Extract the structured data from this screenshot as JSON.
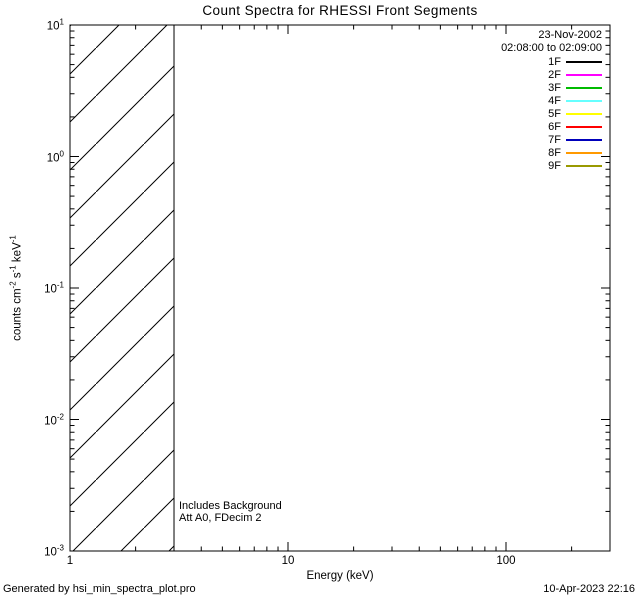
{
  "title": "Count Spectra for RHESSI Front Segments",
  "legend": {
    "date": "23-Nov-2002",
    "time_range": "02:08:00 to 02:09:00",
    "entries": [
      {
        "label": "1F",
        "color": "#000000"
      },
      {
        "label": "2F",
        "color": "#ff00ff"
      },
      {
        "label": "3F",
        "color": "#00bb00"
      },
      {
        "label": "4F",
        "color": "#66ffff"
      },
      {
        "label": "5F",
        "color": "#ffff00"
      },
      {
        "label": "6F",
        "color": "#ff0000"
      },
      {
        "label": "7F",
        "color": "#0000bb"
      },
      {
        "label": "8F",
        "color": "#ff9900"
      },
      {
        "label": "9F",
        "color": "#999900"
      }
    ]
  },
  "annotations": {
    "line1": "Includes Background",
    "line2": "Att A0, FDecim 2"
  },
  "footer": {
    "generated_by": "Generated by hsi_min_spectra_plot.pro",
    "timestamp": "10-Apr-2023 22:16"
  },
  "chart_data": {
    "type": "line",
    "title": "Count Spectra for RHESSI Front Segments",
    "xlabel": "Energy (keV)",
    "ylabel": "counts cm-2 s-1 keV-1",
    "xscale": "log",
    "yscale": "log",
    "xlim": [
      1,
      300
    ],
    "ylim": [
      0.001,
      10
    ],
    "x_ticks": [
      1,
      10,
      100
    ],
    "x_tick_labels": [
      "1",
      "10",
      "100"
    ],
    "y_ticks": [
      10,
      1,
      0.1,
      0.01,
      0.001
    ],
    "y_tick_labels": [
      {
        "base": "10",
        "exp": "1"
      },
      {
        "base": "10",
        "exp": "0"
      },
      {
        "base": "10",
        "exp": "-1"
      },
      {
        "base": "10",
        "exp": "-2"
      },
      {
        "base": "10",
        "exp": "-3"
      }
    ],
    "ylabel_segments": [
      {
        "t": "counts cm"
      },
      {
        "t": "-2",
        "sup": true
      },
      {
        "t": " s"
      },
      {
        "t": "-1",
        "sup": true
      },
      {
        "t": " keV"
      },
      {
        "t": "-1",
        "sup": true
      }
    ],
    "series": [
      {
        "name": "1F",
        "color": "#000000",
        "x": [],
        "y": []
      },
      {
        "name": "2F",
        "color": "#ff00ff",
        "x": [],
        "y": []
      },
      {
        "name": "3F",
        "color": "#00bb00",
        "x": [],
        "y": []
      },
      {
        "name": "4F",
        "color": "#66ffff",
        "x": [],
        "y": []
      },
      {
        "name": "5F",
        "color": "#ffff00",
        "x": [],
        "y": []
      },
      {
        "name": "6F",
        "color": "#ff0000",
        "x": [],
        "y": []
      },
      {
        "name": "7F",
        "color": "#0000bb",
        "x": [],
        "y": []
      },
      {
        "name": "8F",
        "color": "#ff9900",
        "x": [],
        "y": []
      },
      {
        "name": "9F",
        "color": "#999900",
        "x": [],
        "y": []
      }
    ],
    "hatched_region": {
      "x_min": 1,
      "x_max": 3,
      "style": "diagonal-hatch",
      "note": "no spectra curves plotted; only hatched low-energy band visible"
    },
    "grid": false,
    "legend_position": "top-right-inside"
  }
}
